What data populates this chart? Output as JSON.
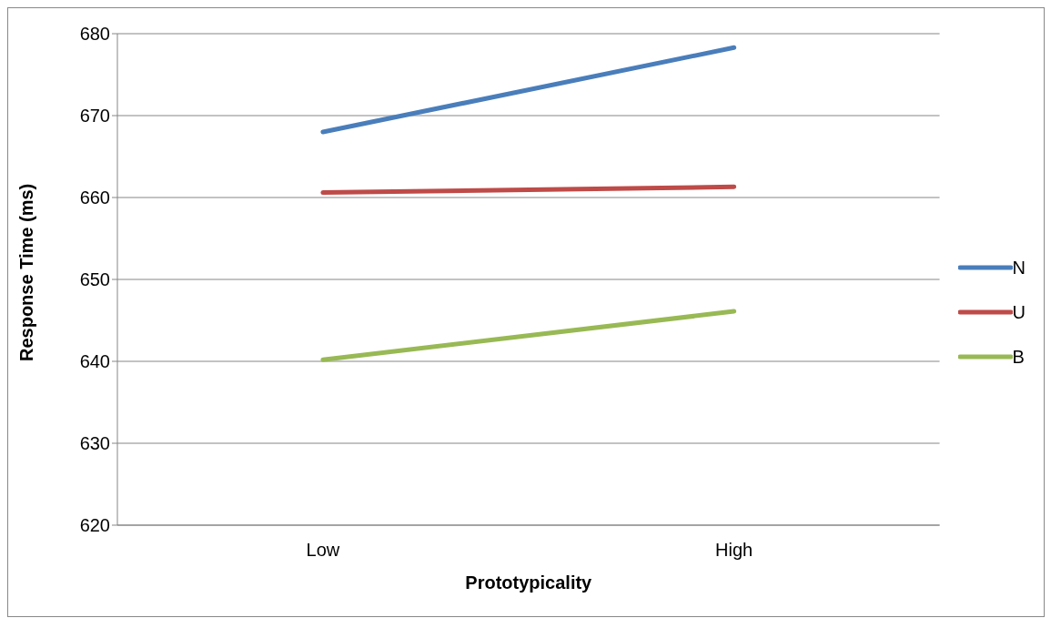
{
  "chart_data": {
    "type": "line",
    "xlabel": "Prototypicality",
    "ylabel": "Response Time (ms)",
    "categories": [
      "Low",
      "High"
    ],
    "series": [
      {
        "name": "N",
        "color": "#4a7ebb",
        "values": [
          668.0,
          678.3
        ]
      },
      {
        "name": "U",
        "color": "#be4b48",
        "values": [
          660.6,
          661.3
        ]
      },
      {
        "name": "B",
        "color": "#98b954",
        "values": [
          640.2,
          646.1
        ]
      }
    ],
    "ylim": [
      620,
      680
    ],
    "yticks": [
      620,
      630,
      640,
      650,
      660,
      670,
      680
    ],
    "grid": "y",
    "legend": "right",
    "marker": "none",
    "line_style": "solid"
  }
}
